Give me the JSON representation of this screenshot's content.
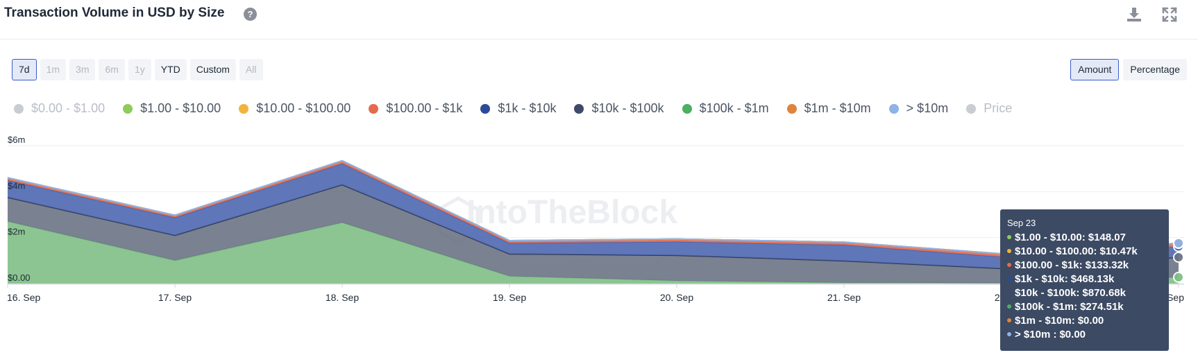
{
  "header": {
    "title": "Transaction Volume in USD by Size",
    "help": "?"
  },
  "toolbar": {
    "download_icon": "download-icon",
    "expand_icon": "expand-icon"
  },
  "range_buttons": [
    {
      "label": "7d",
      "state": "active"
    },
    {
      "label": "1m",
      "state": "disabled"
    },
    {
      "label": "3m",
      "state": "disabled"
    },
    {
      "label": "6m",
      "state": "disabled"
    },
    {
      "label": "1y",
      "state": "disabled"
    },
    {
      "label": "YTD",
      "state": "normal"
    },
    {
      "label": "Custom",
      "state": "normal"
    },
    {
      "label": "All",
      "state": "disabled"
    }
  ],
  "mode_buttons": [
    {
      "label": "Amount",
      "state": "active"
    },
    {
      "label": "Percentage",
      "state": "normal"
    }
  ],
  "legend": [
    {
      "label": "$0.00 - $1.00",
      "color": "#c9ccd1",
      "off": true
    },
    {
      "label": "$1.00 - $10.00",
      "color": "#8fcc5c",
      "off": false
    },
    {
      "label": "$10.00 - $100.00",
      "color": "#f2b33d",
      "off": false
    },
    {
      "label": "$100.00 - $1k",
      "color": "#e56a4e",
      "off": false
    },
    {
      "label": "$1k - $10k",
      "color": "#2a4a9a",
      "off": false
    },
    {
      "label": "$10k - $100k",
      "color": "#3f4a6b",
      "off": false
    },
    {
      "label": "$100k - $1m",
      "color": "#4caf62",
      "off": false
    },
    {
      "label": "$1m - $10m",
      "color": "#e0843a",
      "off": false
    },
    {
      "label": "> $10m",
      "color": "#8fb2e8",
      "off": false
    },
    {
      "label": "Price",
      "color": "#c9ccd1",
      "off": true
    }
  ],
  "watermark": "IntoTheBlock",
  "chart_data": {
    "type": "area",
    "stacked": true,
    "categories": [
      "16. Sep",
      "17. Sep",
      "18. Sep",
      "19. Sep",
      "20. Sep",
      "21. Sep",
      "22. Sep",
      "23. Sep"
    ],
    "y_ticks": [
      "$0.00",
      "$2m",
      "$4m",
      "$6m"
    ],
    "ylim": [
      0,
      6000000
    ],
    "series": [
      {
        "name": "$100k - $1m",
        "color": "#7fbf86",
        "values": [
          2700000,
          1000000,
          2650000,
          320000,
          120000,
          40000,
          25000,
          274510
        ]
      },
      {
        "name": "$10k - $100k",
        "color": "#6b7385",
        "values": [
          1050000,
          1100000,
          1650000,
          970000,
          1110000,
          950000,
          610000,
          870680
        ]
      },
      {
        "name": "$1k - $10k",
        "color": "#4e68b0",
        "values": [
          740000,
          770000,
          920000,
          470000,
          590000,
          690000,
          500000,
          468130
        ]
      },
      {
        "name": "$100.00 - $1k",
        "color": "#e56a4e",
        "values": [
          100000,
          90000,
          110000,
          100000,
          110000,
          110000,
          120000,
          133320
        ]
      },
      {
        "name": "$10.00 - $100.00",
        "color": "#f2b33d",
        "values": [
          12000,
          11000,
          12000,
          10000,
          10000,
          10000,
          11000,
          10470
        ]
      },
      {
        "name": "$1.00 - $10.00",
        "color": "#8fcc5c",
        "values": [
          200,
          180,
          200,
          160,
          150,
          150,
          150,
          148.07
        ]
      },
      {
        "name": "$1m - $10m",
        "color": "#e0843a",
        "values": [
          0,
          0,
          0,
          0,
          0,
          0,
          0,
          0
        ]
      },
      {
        "name": "> $10m",
        "color": "#8fb2e8",
        "values": [
          0,
          0,
          0,
          0,
          0,
          0,
          0,
          0
        ]
      }
    ]
  },
  "tooltip": {
    "date": "Sep 23",
    "rows": [
      {
        "label": "$1.00 - $10.00:",
        "value": "$148.07",
        "color": "#8fcc5c"
      },
      {
        "label": "$10.00 - $100.00:",
        "value": "$10.47k",
        "color": "#f2b33d"
      },
      {
        "label": "$100.00 - $1k:",
        "value": "$133.32k",
        "color": "#e56a4e"
      },
      {
        "label": "$1k - $10k:",
        "value": "$468.13k",
        "color": "#2a4a9a"
      },
      {
        "label": "$10k - $100k:",
        "value": "$870.68k",
        "color": "#3f4a6b"
      },
      {
        "label": "$100k - $1m:",
        "value": "$274.51k",
        "color": "#4caf62"
      },
      {
        "label": "$1m - $10m:",
        "value": "$0.00",
        "color": "#e0843a"
      },
      {
        "label": "> $10m :",
        "value": "$0.00",
        "color": "#8fb2e8"
      }
    ]
  }
}
